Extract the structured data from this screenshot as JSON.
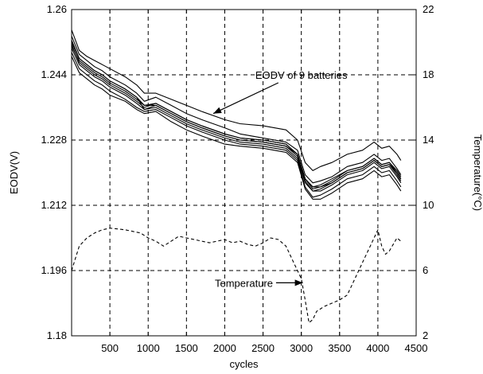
{
  "chart_data": {
    "type": "line",
    "xlabel": "cycles",
    "ylabel_left": "EODV(V)",
    "ylabel_right": "Temperature(°C)",
    "xlim": [
      0,
      4500
    ],
    "ylim_left": [
      1.18,
      1.26
    ],
    "ylim_right": [
      2,
      22
    ],
    "grid": true,
    "x_ticks": [
      500,
      1000,
      1500,
      2000,
      2500,
      3000,
      3500,
      4000,
      4500
    ],
    "x_tick_labels": [
      "500",
      "1000",
      "1500",
      "2000",
      "2500",
      "3000",
      "3500",
      "4000",
      "4500"
    ],
    "y_left_ticks": [
      1.18,
      1.196,
      1.212,
      1.228,
      1.244,
      1.26
    ],
    "y_left_tick_labels": [
      "1.18",
      "1.196",
      "1.212",
      "1.228",
      "1.244",
      "1.26"
    ],
    "y_right_ticks": [
      2,
      6,
      10,
      14,
      18,
      22
    ],
    "y_right_tick_labels": [
      "2",
      "6",
      "10",
      "14",
      "18",
      "22"
    ],
    "annotations": [
      {
        "text": "EODV  of 9 batteries",
        "x": 3000,
        "y_left": 1.244,
        "arrow_to_x": 1850,
        "arrow_to_y_left": 1.2345
      },
      {
        "text": "Temperature",
        "x": 2250,
        "y_left": 1.193,
        "arrow_to_x": 3020,
        "arrow_to_y_left": 1.193
      }
    ],
    "series": [
      {
        "axis": "left",
        "style": "solid",
        "x": [
          0,
          100,
          200,
          300,
          400,
          500,
          700,
          850,
          950,
          1100,
          1300,
          1500,
          1700,
          2000,
          2200,
          2500,
          2800,
          2950,
          3050,
          3150,
          3250,
          3400,
          3600,
          3800,
          3950,
          4050,
          4150,
          4250,
          4300
        ],
        "y": [
          1.2535,
          1.249,
          1.2475,
          1.246,
          1.245,
          1.2435,
          1.2415,
          1.2395,
          1.2375,
          1.2385,
          1.2365,
          1.2345,
          1.233,
          1.231,
          1.2295,
          1.2285,
          1.2275,
          1.2255,
          1.2195,
          1.2175,
          1.218,
          1.219,
          1.2215,
          1.2225,
          1.2245,
          1.223,
          1.2235,
          1.221,
          1.2195
        ]
      },
      {
        "axis": "left",
        "style": "solid",
        "x": [
          0,
          100,
          200,
          300,
          400,
          500,
          700,
          850,
          950,
          1100,
          1300,
          1500,
          1700,
          2000,
          2200,
          2500,
          2800,
          2950,
          3050,
          3150,
          3250,
          3400,
          3600,
          3800,
          3950,
          4050,
          4150,
          4250,
          4300
        ],
        "y": [
          1.2515,
          1.247,
          1.2455,
          1.244,
          1.243,
          1.2415,
          1.2395,
          1.2375,
          1.236,
          1.237,
          1.235,
          1.233,
          1.2315,
          1.2295,
          1.2285,
          1.228,
          1.227,
          1.2245,
          1.2185,
          1.2165,
          1.217,
          1.2185,
          1.2205,
          1.2215,
          1.2235,
          1.222,
          1.2225,
          1.22,
          1.2185
        ]
      },
      {
        "axis": "left",
        "style": "solid",
        "x": [
          0,
          100,
          200,
          300,
          400,
          500,
          700,
          850,
          950,
          1100,
          1300,
          1500,
          1700,
          2000,
          2200,
          2500,
          2800,
          2950,
          3050,
          3150,
          3250,
          3400,
          3600,
          3800,
          3950,
          4050,
          4150,
          4250,
          4300
        ],
        "y": [
          1.252,
          1.248,
          1.2465,
          1.245,
          1.244,
          1.2425,
          1.2405,
          1.2385,
          1.2355,
          1.2365,
          1.2345,
          1.2325,
          1.231,
          1.229,
          1.228,
          1.2275,
          1.2265,
          1.224,
          1.218,
          1.2155,
          1.216,
          1.2175,
          1.22,
          1.221,
          1.223,
          1.2215,
          1.222,
          1.2195,
          1.218
        ]
      },
      {
        "axis": "left",
        "style": "solid",
        "x": [
          0,
          100,
          200,
          300,
          400,
          500,
          700,
          850,
          950,
          1100,
          1300,
          1500,
          1700,
          2000,
          2200,
          2500,
          2800,
          2950,
          3050,
          3150,
          3250,
          3400,
          3600,
          3800,
          3950,
          4050,
          4150,
          4250,
          4300
        ],
        "y": [
          1.2505,
          1.2465,
          1.245,
          1.2435,
          1.2425,
          1.241,
          1.239,
          1.237,
          1.2355,
          1.236,
          1.234,
          1.232,
          1.2305,
          1.2285,
          1.2275,
          1.227,
          1.226,
          1.2235,
          1.2175,
          1.2155,
          1.2155,
          1.217,
          1.2195,
          1.2205,
          1.2225,
          1.221,
          1.2215,
          1.219,
          1.2175
        ]
      },
      {
        "axis": "left",
        "style": "solid",
        "x": [
          0,
          100,
          200,
          300,
          400,
          500,
          700,
          850,
          950,
          1100,
          1300,
          1500,
          1700,
          2000,
          2200,
          2500,
          2800,
          2950,
          3050,
          3150,
          3250,
          3400,
          3600,
          3800,
          3950,
          4050,
          4150,
          4250,
          4300
        ],
        "y": [
          1.251,
          1.2475,
          1.246,
          1.2445,
          1.2435,
          1.242,
          1.24,
          1.238,
          1.2365,
          1.2365,
          1.2345,
          1.2325,
          1.231,
          1.229,
          1.228,
          1.2275,
          1.2265,
          1.2245,
          1.2185,
          1.2165,
          1.2165,
          1.218,
          1.2205,
          1.2215,
          1.2235,
          1.222,
          1.2225,
          1.2205,
          1.219
        ]
      },
      {
        "axis": "left",
        "style": "solid",
        "x": [
          0,
          100,
          200,
          300,
          400,
          500,
          700,
          850,
          950,
          1100,
          1300,
          1500,
          1700,
          2000,
          2200,
          2500,
          2800,
          2950,
          3050,
          3150,
          3250,
          3400,
          3600,
          3800,
          3950,
          4050,
          4150,
          4250,
          4300
        ],
        "y": [
          1.2525,
          1.248,
          1.2465,
          1.245,
          1.244,
          1.2425,
          1.2405,
          1.2385,
          1.2365,
          1.237,
          1.235,
          1.233,
          1.2315,
          1.2295,
          1.2285,
          1.228,
          1.227,
          1.2245,
          1.2185,
          1.216,
          1.2165,
          1.2175,
          1.22,
          1.221,
          1.223,
          1.2215,
          1.222,
          1.22,
          1.2185
        ]
      },
      {
        "axis": "left",
        "style": "solid",
        "x": [
          0,
          100,
          200,
          300,
          400,
          500,
          700,
          850,
          950,
          1100,
          1300,
          1500,
          1700,
          2000,
          2200,
          2500,
          2800,
          2950,
          3050,
          3150,
          3250,
          3400,
          3600,
          3800,
          3950,
          4050,
          4150,
          4250,
          4300
        ],
        "y": [
          1.2495,
          1.2455,
          1.244,
          1.2425,
          1.2415,
          1.24,
          1.238,
          1.236,
          1.235,
          1.2355,
          1.2335,
          1.2315,
          1.23,
          1.228,
          1.227,
          1.2265,
          1.2255,
          1.223,
          1.2165,
          1.214,
          1.2145,
          1.216,
          1.2185,
          1.2195,
          1.2215,
          1.22,
          1.2205,
          1.218,
          1.2165
        ]
      },
      {
        "axis": "left",
        "style": "solid",
        "x": [
          0,
          100,
          200,
          300,
          400,
          500,
          700,
          850,
          950,
          1100,
          1300,
          1500,
          1700,
          2000,
          2200,
          2500,
          2800,
          2950,
          3050,
          3150,
          3250,
          3400,
          3600,
          3800,
          3950,
          4050,
          4150,
          4250,
          4300
        ],
        "y": [
          1.255,
          1.25,
          1.2485,
          1.2475,
          1.2465,
          1.2455,
          1.2435,
          1.2415,
          1.2395,
          1.2395,
          1.238,
          1.2365,
          1.235,
          1.233,
          1.232,
          1.2315,
          1.2305,
          1.228,
          1.2225,
          1.2205,
          1.2215,
          1.2225,
          1.2245,
          1.2255,
          1.2275,
          1.226,
          1.2265,
          1.2245,
          1.223
        ]
      },
      {
        "axis": "left",
        "style": "solid",
        "x": [
          0,
          100,
          200,
          300,
          400,
          500,
          700,
          850,
          950,
          1100,
          1300,
          1500,
          1700,
          2000,
          2200,
          2500,
          2800,
          2950,
          3050,
          3150,
          3250,
          3400,
          3600,
          3800,
          3950,
          4050,
          4150,
          4250,
          4300
        ],
        "y": [
          1.2485,
          1.2445,
          1.243,
          1.2415,
          1.2405,
          1.239,
          1.2375,
          1.2355,
          1.2345,
          1.235,
          1.2325,
          1.2305,
          1.229,
          1.227,
          1.2265,
          1.226,
          1.225,
          1.2225,
          1.216,
          1.2135,
          1.2135,
          1.215,
          1.2175,
          1.2185,
          1.2205,
          1.219,
          1.2195,
          1.217,
          1.2155
        ]
      },
      {
        "axis": "right",
        "style": "dashed",
        "name": "Temperature",
        "x": [
          0,
          100,
          200,
          300,
          400,
          500,
          600,
          700,
          800,
          900,
          1000,
          1100,
          1200,
          1300,
          1400,
          1500,
          1600,
          1700,
          1800,
          1900,
          2000,
          2100,
          2200,
          2300,
          2400,
          2500,
          2600,
          2700,
          2800,
          2900,
          3000,
          3050,
          3100,
          3150,
          3200,
          3300,
          3400,
          3500,
          3600,
          3700,
          3800,
          3900,
          4000,
          4050,
          4100,
          4150,
          4200,
          4250,
          4300
        ],
        "y": [
          6.0,
          7.5,
          8.0,
          8.3,
          8.5,
          8.6,
          8.55,
          8.5,
          8.4,
          8.3,
          8.0,
          7.8,
          7.5,
          7.8,
          8.1,
          8.0,
          7.9,
          7.8,
          7.7,
          7.8,
          7.9,
          7.7,
          7.8,
          7.6,
          7.5,
          7.7,
          8.0,
          7.9,
          7.5,
          6.5,
          5.5,
          4.2,
          2.8,
          3.0,
          3.5,
          3.8,
          4.0,
          4.2,
          4.5,
          5.5,
          6.5,
          7.5,
          8.5,
          7.5,
          7.0,
          7.2,
          7.6,
          8.0,
          7.8
        ]
      }
    ]
  }
}
